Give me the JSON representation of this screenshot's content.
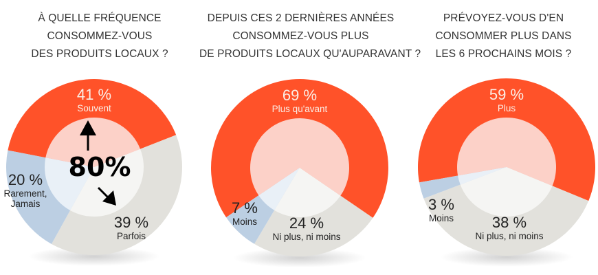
{
  "colors": {
    "orange": "#ff5229",
    "orange_inner": "#fcd1c8",
    "blue": "#bccfe3",
    "blue_inner": "#e9f0f7",
    "grey": "#e2e1dc",
    "grey_inner": "#f5f5f3",
    "text_dark": "#222222",
    "text_light": "#fbeee6"
  },
  "chart_data": [
    {
      "type": "pie",
      "variant": "donut",
      "title": "À QUELLE FRÉQUENCE CONSOMMEZ-VOUS DES PRODUITS LOCAUX ?",
      "title_lines": [
        "À QUELLE FRÉQUENCE",
        "CONSOMMEZ-VOUS",
        "DES PRODUITS LOCAUX ?"
      ],
      "slices": [
        {
          "label": "Souvent",
          "value": 41,
          "value_text": "41 %",
          "color_key": "orange"
        },
        {
          "label": "Parfois",
          "value": 39,
          "value_text": "39 %",
          "color_key": "grey"
        },
        {
          "label": "Rarement, Jamais",
          "label_lines": [
            "Rarement,",
            "Jamais"
          ],
          "value": 20,
          "value_text": "20 %",
          "color_key": "blue"
        }
      ],
      "annotation": "80%"
    },
    {
      "type": "pie",
      "variant": "donut",
      "title": "DEPUIS CES 2 DERNIÈRES ANNÉES CONSOMMEZ-VOUS PLUS DE PRODUITS LOCAUX QU'AUPARAVANT ?",
      "title_lines": [
        "DEPUIS CES 2 DERNIÈRES ANNÉES",
        "CONSOMMEZ-VOUS PLUS",
        "DE PRODUITS LOCAUX QU'AUPARAVANT ?"
      ],
      "slices": [
        {
          "label": "Plus qu'avant",
          "value": 69,
          "value_text": "69 %",
          "color_key": "orange"
        },
        {
          "label": "Ni plus, ni moins",
          "value": 24,
          "value_text": "24 %",
          "color_key": "grey"
        },
        {
          "label": "Moins",
          "value": 7,
          "value_text": "7 %",
          "color_key": "blue"
        }
      ]
    },
    {
      "type": "pie",
      "variant": "donut",
      "title": "PRÉVOYEZ-VOUS D'EN CONSOMMER PLUS DANS LES 6 PROCHAINS MOIS ?",
      "title_lines": [
        "PRÉVOYEZ-VOUS D'EN",
        "CONSOMMER PLUS DANS",
        "LES 6 PROCHAINS MOIS ?"
      ],
      "slices": [
        {
          "label": "Plus",
          "value": 59,
          "value_text": "59 %",
          "color_key": "orange"
        },
        {
          "label": "Ni plus, ni moins",
          "value": 38,
          "value_text": "38 %",
          "color_key": "grey"
        },
        {
          "label": "Moins",
          "value": 3,
          "value_text": "3 %",
          "color_key": "blue"
        }
      ]
    }
  ]
}
